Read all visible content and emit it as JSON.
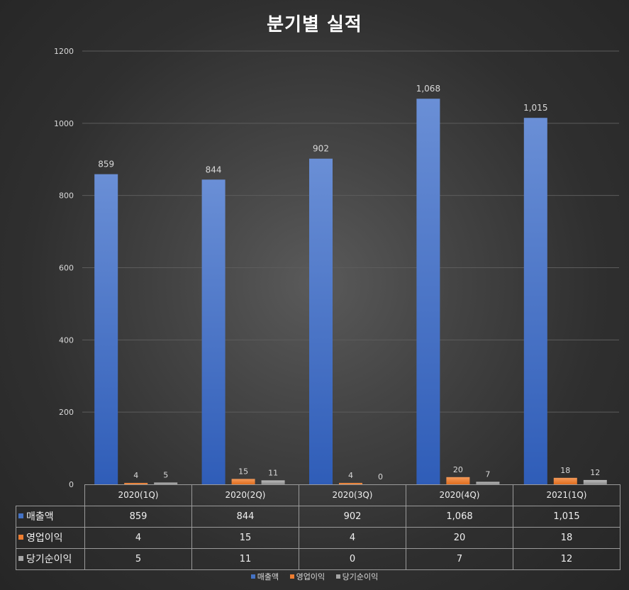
{
  "chart_data": {
    "type": "bar",
    "title": "분기별 실적",
    "categories": [
      "2020(1Q)",
      "2020(2Q)",
      "2020(3Q)",
      "2020(4Q)",
      "2021(1Q)"
    ],
    "series": [
      {
        "name": "매출액",
        "values": [
          859,
          844,
          902,
          1068,
          1015
        ],
        "labels": [
          "859",
          "844",
          "902",
          "1,068",
          "1,015"
        ],
        "color": "#4472c4"
      },
      {
        "name": "영업이익",
        "values": [
          4,
          15,
          4,
          20,
          18
        ],
        "labels": [
          "4",
          "15",
          "4",
          "20",
          "18"
        ],
        "color": "#ed7d31"
      },
      {
        "name": "당기순이익",
        "values": [
          5,
          11,
          0,
          7,
          12
        ],
        "labels": [
          "5",
          "11",
          "0",
          "7",
          "12"
        ],
        "color": "#a5a5a5"
      }
    ],
    "ylim": [
      0,
      1200
    ],
    "yticks": [
      "0",
      "200",
      "400",
      "600",
      "800",
      "1000",
      "1200"
    ],
    "ytick_values": [
      0,
      200,
      400,
      600,
      800,
      1000,
      1200
    ],
    "grid": true,
    "legend": "bottom",
    "data_table": true
  }
}
